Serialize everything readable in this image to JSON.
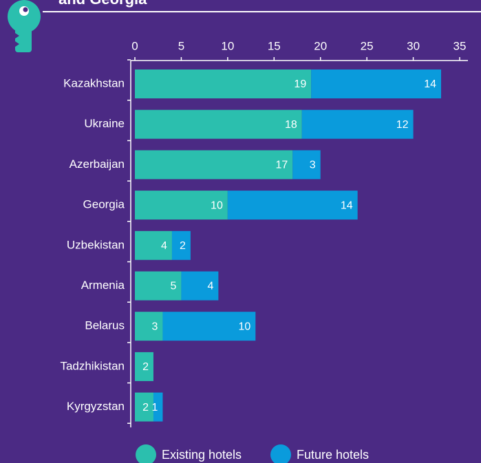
{
  "chart_data": {
    "type": "stacked-bar-horizontal",
    "title": "and Georgia",
    "categories": [
      "Kazakhstan",
      "Ukraine",
      "Azerbaijan",
      "Georgia",
      "Uzbekistan",
      "Armenia",
      "Belarus",
      "Tadzhikistan",
      "Kyrgyzstan"
    ],
    "series": [
      {
        "name": "Existing hotels",
        "color": "#2bbfae",
        "values": [
          19,
          18,
          17,
          10,
          4,
          5,
          3,
          2,
          2
        ]
      },
      {
        "name": "Future hotels",
        "color": "#0a9bdc",
        "values": [
          14,
          12,
          3,
          14,
          2,
          4,
          10,
          null,
          1
        ]
      }
    ],
    "xlim": [
      0,
      35
    ],
    "xticks": [
      0,
      5,
      10,
      15,
      20,
      25,
      30,
      35
    ],
    "legend": "bottom"
  }
}
